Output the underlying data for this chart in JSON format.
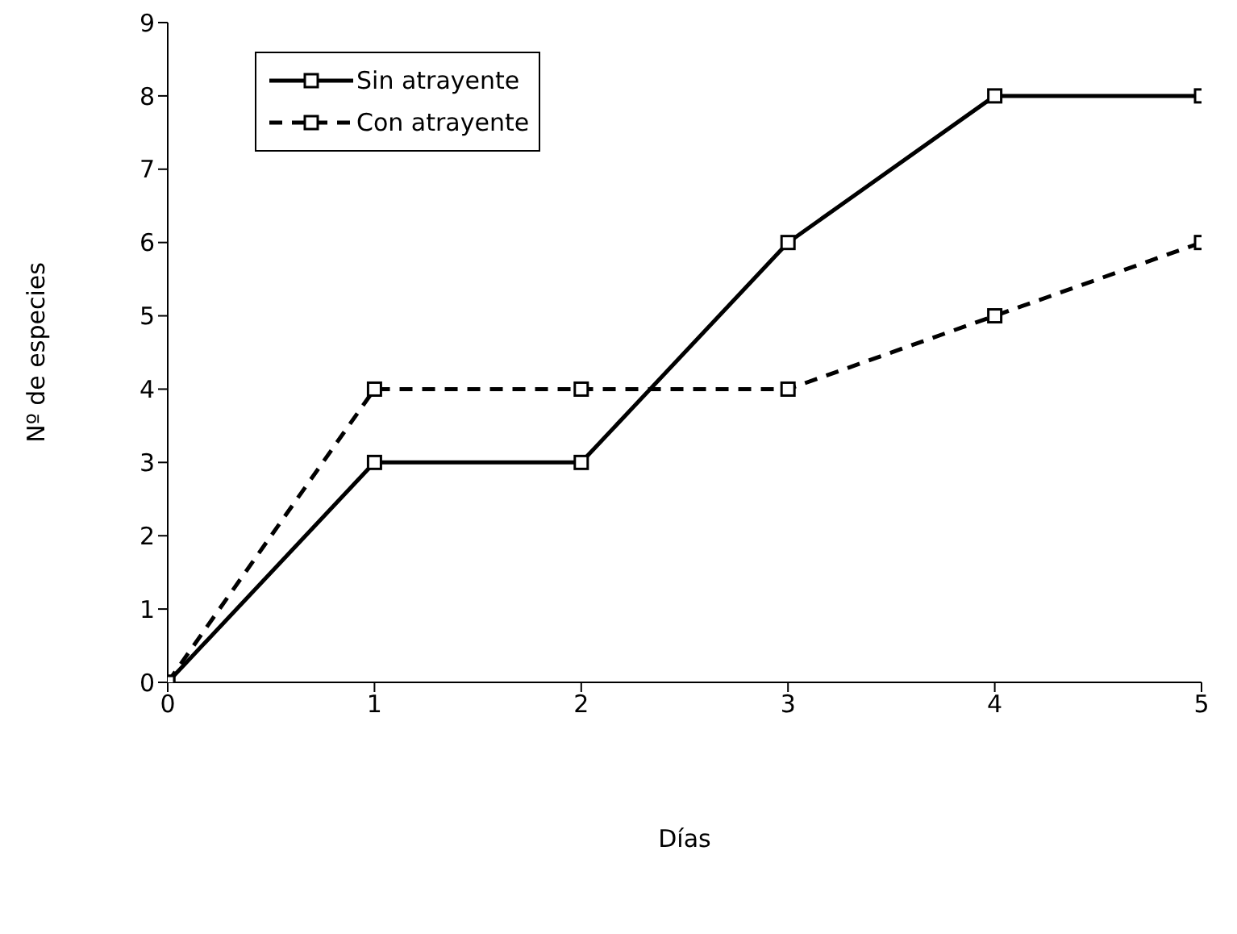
{
  "chart_data": {
    "type": "line",
    "xlabel": "Días",
    "ylabel": "Nº de especies",
    "x": [
      0,
      1,
      2,
      3,
      4,
      5
    ],
    "series": [
      {
        "name": "Sin atrayente",
        "color": "#000000",
        "values": [
          0,
          3,
          3,
          6,
          8,
          8
        ],
        "line_style": "solid"
      },
      {
        "name": "Con atrayente",
        "color": "#000000",
        "values": [
          0,
          4,
          4,
          4,
          5,
          6
        ],
        "line_style": "dashed"
      }
    ],
    "xlim": [
      0,
      5
    ],
    "xticks": [
      0,
      1,
      2,
      3,
      4,
      5
    ],
    "ylim": [
      0,
      9
    ],
    "yticks": [
      0,
      1,
      2,
      3,
      4,
      5,
      6,
      7,
      8,
      9
    ],
    "grid": false,
    "legend": "top left",
    "marker": "square"
  }
}
